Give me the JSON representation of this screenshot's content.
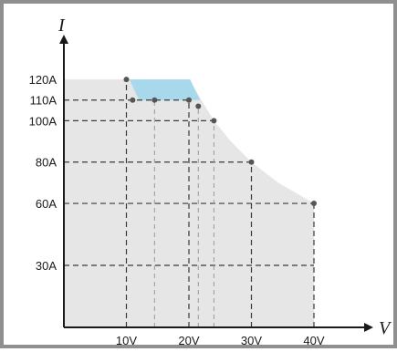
{
  "chart_data": {
    "type": "area",
    "title": "",
    "xlabel": "V",
    "ylabel": "I",
    "x_ticks": [
      {
        "value": 10,
        "label": "10V"
      },
      {
        "value": 20,
        "label": "20V"
      },
      {
        "value": 30,
        "label": "30V"
      },
      {
        "value": 40,
        "label": "40V"
      }
    ],
    "y_ticks": [
      {
        "value": 120,
        "label": "120A"
      },
      {
        "value": 110,
        "label": "110A"
      },
      {
        "value": 100,
        "label": "100A"
      },
      {
        "value": 80,
        "label": "80A"
      },
      {
        "value": 60,
        "label": "60A"
      },
      {
        "value": 30,
        "label": "30A"
      }
    ],
    "xlim": [
      0,
      47
    ],
    "ylim": [
      0,
      132
    ],
    "operating_envelope": {
      "color": "#e6e6e6",
      "boundary": [
        {
          "v": 0,
          "i": 120
        },
        {
          "v": 10,
          "i": 120
        },
        {
          "v": 20,
          "i": 120
        },
        {
          "v": 24,
          "i": 100
        },
        {
          "v": 26.7,
          "i": 90
        },
        {
          "v": 30,
          "i": 80
        },
        {
          "v": 34.3,
          "i": 70
        },
        {
          "v": 40,
          "i": 60
        }
      ]
    },
    "highlight_region": {
      "color": "#a8d8ec",
      "points": [
        {
          "v": 10.5,
          "i": 120
        },
        {
          "v": 20.2,
          "i": 120
        },
        {
          "v": 21.8,
          "i": 110
        },
        {
          "v": 12,
          "i": 110
        }
      ]
    },
    "operating_points": [
      {
        "v": 10,
        "i": 120
      },
      {
        "v": 11,
        "i": 110
      },
      {
        "v": 14.5,
        "i": 110
      },
      {
        "v": 20,
        "i": 110
      },
      {
        "v": 21.5,
        "i": 107
      },
      {
        "v": 24,
        "i": 100
      },
      {
        "v": 30,
        "i": 80
      },
      {
        "v": 40,
        "i": 60
      }
    ],
    "guides": [
      {
        "style": "dark",
        "from": {
          "v": 10,
          "i": 0
        },
        "to": {
          "v": 10,
          "i": 120
        }
      },
      {
        "style": "dark",
        "from": {
          "v": 0,
          "i": 110
        },
        "to": {
          "v": 20,
          "i": 110
        }
      },
      {
        "style": "dark",
        "from": {
          "v": 20,
          "i": 0
        },
        "to": {
          "v": 20,
          "i": 110
        }
      },
      {
        "style": "dark",
        "from": {
          "v": 0,
          "i": 100
        },
        "to": {
          "v": 24,
          "i": 100
        }
      },
      {
        "style": "dark",
        "from": {
          "v": 0,
          "i": 80
        },
        "to": {
          "v": 30,
          "i": 80
        }
      },
      {
        "style": "dark",
        "from": {
          "v": 30,
          "i": 0
        },
        "to": {
          "v": 30,
          "i": 80
        }
      },
      {
        "style": "dark",
        "from": {
          "v": 0,
          "i": 60
        },
        "to": {
          "v": 40,
          "i": 60
        }
      },
      {
        "style": "dark",
        "from": {
          "v": 40,
          "i": 0
        },
        "to": {
          "v": 40,
          "i": 60
        }
      },
      {
        "style": "dark",
        "from": {
          "v": 0,
          "i": 30
        },
        "to": {
          "v": 40,
          "i": 30
        }
      },
      {
        "style": "light",
        "from": {
          "v": 14.5,
          "i": 0
        },
        "to": {
          "v": 14.5,
          "i": 110
        }
      },
      {
        "style": "light",
        "from": {
          "v": 21.5,
          "i": 0
        },
        "to": {
          "v": 21.5,
          "i": 107
        }
      },
      {
        "style": "light",
        "from": {
          "v": 24,
          "i": 0
        },
        "to": {
          "v": 24,
          "i": 100
        }
      }
    ],
    "grid": false,
    "legend": "none"
  }
}
